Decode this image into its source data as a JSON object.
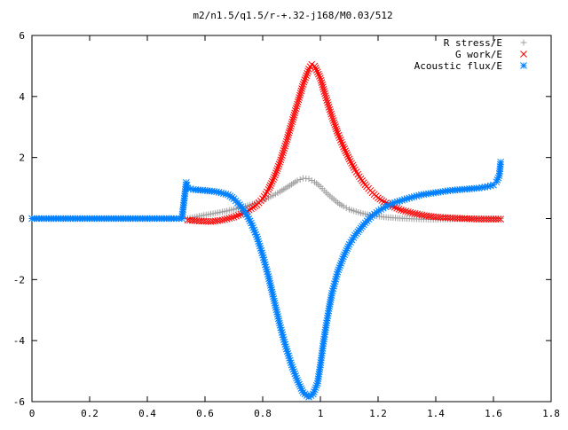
{
  "chart_data": {
    "type": "scatter",
    "title": "m2/n1.5/q1.5/r-+.32-j168/M0.03/512",
    "xlabel": "",
    "ylabel": "",
    "xlim": [
      0,
      1.8
    ],
    "ylim": [
      -6,
      6
    ],
    "x_ticks": [
      0,
      0.2,
      0.4,
      0.6,
      0.8,
      1,
      1.2,
      1.4,
      1.6,
      1.8
    ],
    "x_tick_labels": [
      "0",
      "0.2",
      "0.4",
      "0.6",
      "0.8",
      "1",
      "1.2",
      "1.4",
      "1.6",
      "1.8"
    ],
    "y_ticks": [
      -6,
      -4,
      -2,
      0,
      2,
      4,
      6
    ],
    "y_tick_labels": [
      "-6",
      "-4",
      "-2",
      "0",
      "2",
      "4",
      "6"
    ],
    "grid": false,
    "legend_position": "top-right",
    "series": [
      {
        "name": "R stress/E",
        "marker": "plus",
        "color": "#a0a0a0",
        "x": [
          0.54,
          0.58,
          0.62,
          0.66,
          0.7,
          0.74,
          0.78,
          0.82,
          0.86,
          0.88,
          0.9,
          0.92,
          0.94,
          0.96,
          0.98,
          1.0,
          1.02,
          1.04,
          1.06,
          1.08,
          1.1,
          1.14,
          1.18,
          1.22,
          1.26,
          1.3,
          1.35,
          1.4,
          1.45,
          1.5,
          1.55,
          1.6,
          1.625
        ],
        "y": [
          0.0,
          0.08,
          0.15,
          0.22,
          0.3,
          0.4,
          0.52,
          0.68,
          0.88,
          1.0,
          1.12,
          1.24,
          1.32,
          1.3,
          1.2,
          1.05,
          0.85,
          0.68,
          0.52,
          0.4,
          0.3,
          0.18,
          0.1,
          0.05,
          0.02,
          0.0,
          -0.02,
          -0.03,
          -0.02,
          -0.01,
          0.0,
          0.0,
          0.0
        ]
      },
      {
        "name": "G work/E",
        "marker": "cross",
        "color": "#ff0000",
        "x": [
          0.54,
          0.58,
          0.62,
          0.66,
          0.7,
          0.74,
          0.78,
          0.8,
          0.82,
          0.84,
          0.86,
          0.88,
          0.9,
          0.92,
          0.94,
          0.96,
          0.97,
          0.98,
          1.0,
          1.02,
          1.04,
          1.06,
          1.08,
          1.1,
          1.12,
          1.14,
          1.16,
          1.18,
          1.2,
          1.22,
          1.25,
          1.28,
          1.32,
          1.36,
          1.4,
          1.45,
          1.5,
          1.55,
          1.6,
          1.625
        ],
        "y": [
          -0.05,
          -0.08,
          -0.1,
          -0.05,
          0.05,
          0.2,
          0.45,
          0.65,
          0.95,
          1.35,
          1.85,
          2.45,
          3.1,
          3.75,
          4.4,
          4.9,
          5.05,
          5.0,
          4.6,
          3.95,
          3.35,
          2.8,
          2.35,
          1.95,
          1.6,
          1.3,
          1.05,
          0.85,
          0.68,
          0.55,
          0.4,
          0.28,
          0.18,
          0.1,
          0.05,
          0.02,
          0.0,
          -0.02,
          -0.02,
          -0.02
        ]
      },
      {
        "name": "Acoustic flux/E",
        "marker": "star",
        "color": "#0080ff",
        "x": [
          0.0,
          0.05,
          0.1,
          0.15,
          0.2,
          0.25,
          0.3,
          0.35,
          0.4,
          0.45,
          0.5,
          0.52,
          0.535,
          0.54,
          0.56,
          0.6,
          0.64,
          0.68,
          0.7,
          0.72,
          0.74,
          0.76,
          0.78,
          0.8,
          0.82,
          0.84,
          0.86,
          0.88,
          0.9,
          0.92,
          0.94,
          0.96,
          0.975,
          0.99,
          1.0,
          1.01,
          1.02,
          1.03,
          1.04,
          1.06,
          1.08,
          1.1,
          1.12,
          1.15,
          1.18,
          1.21,
          1.25,
          1.3,
          1.35,
          1.4,
          1.45,
          1.5,
          1.55,
          1.58,
          1.6,
          1.61,
          1.62,
          1.625
        ],
        "y": [
          0.0,
          0.0,
          0.0,
          0.0,
          0.0,
          0.0,
          0.0,
          0.0,
          0.0,
          0.0,
          0.0,
          0.0,
          1.18,
          1.0,
          0.95,
          0.92,
          0.88,
          0.78,
          0.65,
          0.45,
          0.2,
          -0.15,
          -0.6,
          -1.2,
          -1.9,
          -2.7,
          -3.5,
          -4.2,
          -4.8,
          -5.3,
          -5.7,
          -5.85,
          -5.75,
          -5.4,
          -4.8,
          -4.1,
          -3.5,
          -2.95,
          -2.45,
          -1.75,
          -1.25,
          -0.85,
          -0.55,
          -0.2,
          0.1,
          0.3,
          0.5,
          0.65,
          0.78,
          0.85,
          0.92,
          0.96,
          1.0,
          1.05,
          1.1,
          1.2,
          1.4,
          1.85
        ]
      }
    ]
  }
}
